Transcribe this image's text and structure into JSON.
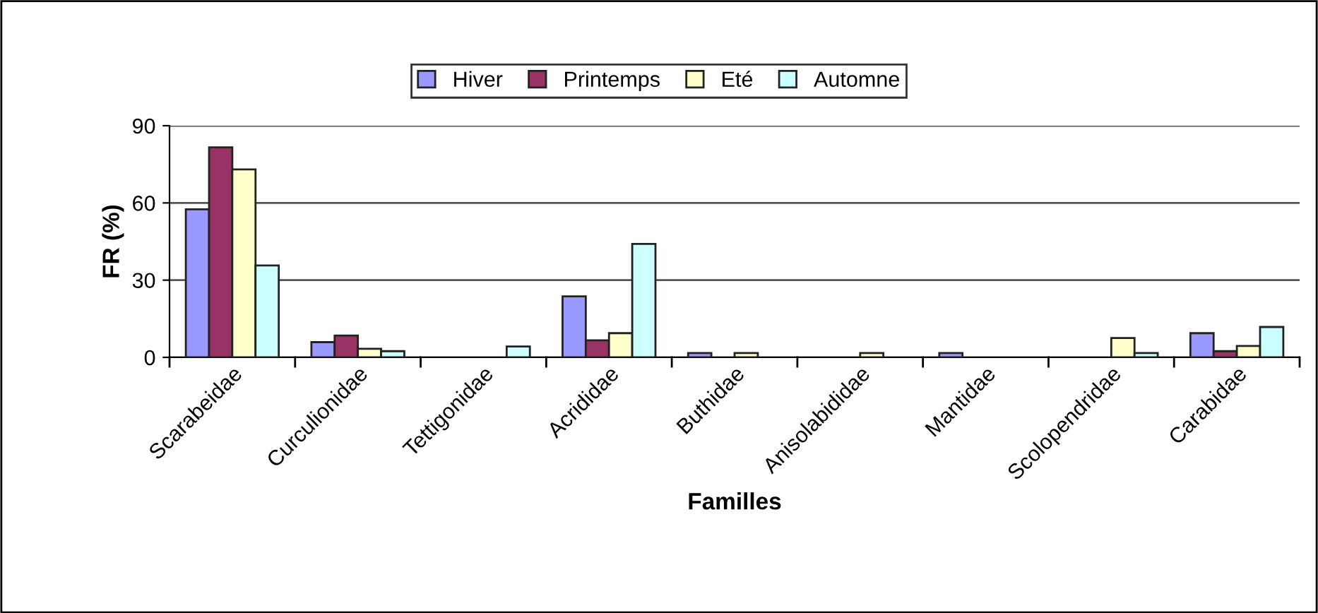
{
  "chart_data": {
    "type": "bar",
    "xlabel": "Familles",
    "ylabel": "FR (%)",
    "categories": [
      "Scarabeidae",
      "Curculionidae",
      "Tettigonidae",
      "Acrididae",
      "Buthidae",
      "Anisolabididae",
      "Mantidae",
      "Scolopendridae",
      "Carabidae"
    ],
    "series": [
      {
        "name": "Hiver",
        "color": "#9999ff",
        "values": [
          57.5,
          5.9,
          null,
          23.7,
          1.7,
          null,
          1.7,
          null,
          9.4
        ]
      },
      {
        "name": "Printemps",
        "color": "#993366",
        "values": [
          81.6,
          8.5,
          null,
          6.6,
          null,
          null,
          null,
          null,
          2.4
        ]
      },
      {
        "name": "Eté",
        "color": "#ffffcc",
        "values": [
          73,
          3.3,
          null,
          9.4,
          1.7,
          1.7,
          null,
          7.5,
          4.4
        ]
      },
      {
        "name": "Automne",
        "color": "#ccffff",
        "values": [
          35.7,
          2.4,
          4.2,
          44.1,
          null,
          null,
          null,
          1.7,
          11.8
        ]
      }
    ],
    "ylim": [
      0,
      90
    ],
    "yticks": [
      0,
      30,
      60,
      90
    ],
    "grid": "y",
    "legend": "top"
  }
}
